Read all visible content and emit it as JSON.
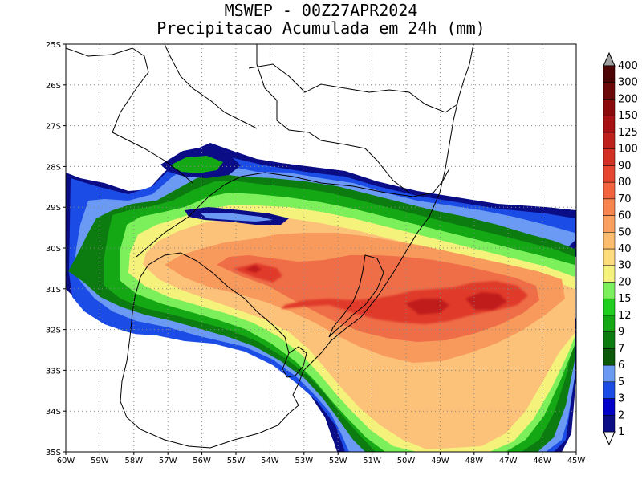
{
  "title": "MSWEP - 00Z27APR2024",
  "subtitle": "Precipitacao Acumulada em 24h (mm)",
  "map": {
    "lon_range": [
      -60,
      -45
    ],
    "lat_range": [
      -35,
      -25
    ],
    "grid": "dotted",
    "lon_labels": [
      "60W",
      "59W",
      "58W",
      "57W",
      "56W",
      "55W",
      "54W",
      "53W",
      "52W",
      "51W",
      "50W",
      "49W",
      "48W",
      "47W",
      "46W",
      "45W"
    ],
    "lat_labels": [
      "25S",
      "26S",
      "27S",
      "28S",
      "29S",
      "30S",
      "31S",
      "32S",
      "33S",
      "34S",
      "35S"
    ]
  },
  "colorbar": {
    "levels": [
      "1",
      "2",
      "3",
      "5",
      "6",
      "7",
      "9",
      "12",
      "15",
      "20",
      "30",
      "40",
      "50",
      "60",
      "70",
      "80",
      "90",
      "100",
      "125",
      "150",
      "200",
      "300",
      "400"
    ],
    "colors": [
      "#0b0d87",
      "#0000c8",
      "#1b4de6",
      "#6b9af5",
      "#0a5a0a",
      "#0c7c10",
      "#14a814",
      "#1fd01f",
      "#7cf05a",
      "#f4f27a",
      "#fcdc7a",
      "#fcbc6e",
      "#fba060",
      "#f88450",
      "#f5623e",
      "#e84530",
      "#d43024",
      "#c0201c",
      "#a81014",
      "#8c0a0c",
      "#6c0808",
      "#4c0404"
    ]
  },
  "fields": {
    "outer_blue": "#0b0d87",
    "blue2": "#1b4de6",
    "light_blue": "#6b9af5",
    "dark_green": "#0c7c10",
    "green": "#14a814",
    "light_green": "#7cf05a",
    "yellow": "#f4f27a",
    "peach": "#fcc27a",
    "orange": "#f89a5c",
    "red_orange": "#ef6e48",
    "red": "#e03a2c",
    "dark_red": "#c01e1c"
  }
}
